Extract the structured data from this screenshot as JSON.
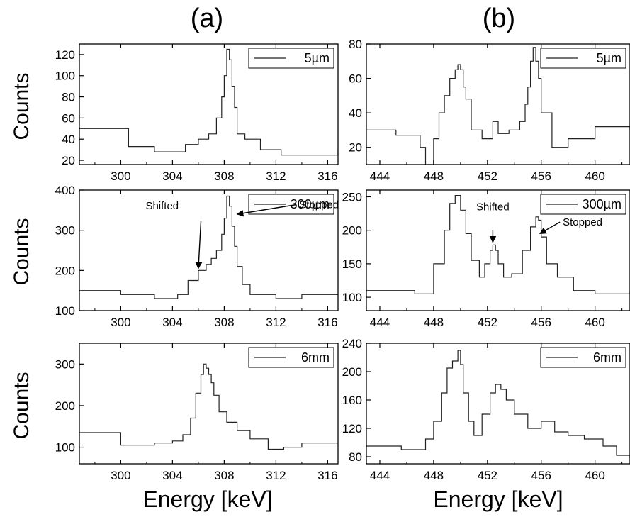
{
  "figure": {
    "col_labels": [
      "(a)",
      "(b)"
    ],
    "ylabel": "Counts",
    "xlabel": "Energy [keV]"
  },
  "chart_data": [
    {
      "type": "line",
      "step": true,
      "panel": "a-top",
      "legend": "5µm",
      "legend_position": "top-right",
      "xlim": [
        296.8,
        316.8
      ],
      "ylim": [
        16,
        130
      ],
      "xticks": [
        300,
        304,
        308,
        312,
        316
      ],
      "yticks": [
        20,
        40,
        60,
        80,
        100,
        120
      ],
      "x": [
        296.8,
        300.6,
        302.6,
        305.0,
        306.0,
        306.8,
        307.4,
        307.8,
        308.0,
        308.2,
        308.4,
        308.6,
        308.8,
        309.0,
        309.6,
        310.8,
        312.4,
        314.0,
        316.8
      ],
      "y": [
        50,
        33,
        28,
        35,
        40,
        45,
        60,
        80,
        100,
        125,
        115,
        90,
        70,
        45,
        40,
        30,
        25,
        25,
        30
      ],
      "annotations": []
    },
    {
      "type": "line",
      "step": true,
      "panel": "b-top",
      "legend": "5µm",
      "legend_position": "top-right",
      "xlim": [
        443.0,
        462.6
      ],
      "ylim": [
        10,
        80
      ],
      "xticks": [
        444,
        448,
        452,
        456,
        460
      ],
      "yticks": [
        20,
        40,
        60,
        80
      ],
      "x": [
        443.0,
        445.2,
        447.0,
        447.4,
        448.0,
        448.4,
        448.8,
        449.2,
        449.6,
        449.8,
        450.0,
        450.2,
        450.4,
        450.8,
        451.6,
        452.4,
        452.8,
        453.6,
        454.4,
        454.8,
        455.0,
        455.2,
        455.4,
        455.6,
        455.8,
        456.0,
        456.8,
        458.0,
        460.0,
        462.6
      ],
      "y": [
        30,
        27,
        20,
        10,
        25,
        40,
        50,
        60,
        65,
        68,
        65,
        55,
        48,
        30,
        25,
        35,
        28,
        30,
        35,
        45,
        55,
        70,
        78,
        70,
        60,
        40,
        20,
        25,
        32,
        30
      ],
      "annotations": []
    },
    {
      "type": "line",
      "step": true,
      "panel": "a-middle",
      "legend": "300µm",
      "legend_position": "top-right",
      "xlim": [
        296.8,
        316.8
      ],
      "ylim": [
        100,
        400
      ],
      "xticks": [
        300,
        304,
        308,
        312,
        316
      ],
      "yticks": [
        100,
        200,
        300,
        400
      ],
      "x": [
        296.8,
        300.0,
        302.6,
        304.4,
        305.2,
        306.0,
        306.6,
        307.0,
        307.4,
        307.8,
        308.0,
        308.2,
        308.4,
        308.6,
        308.8,
        309.0,
        309.4,
        310.0,
        312.0,
        314.0,
        316.8
      ],
      "y": [
        150,
        140,
        130,
        140,
        175,
        200,
        215,
        230,
        250,
        290,
        330,
        385,
        360,
        310,
        260,
        210,
        165,
        140,
        130,
        140,
        140
      ],
      "annotations": [
        "Shifted",
        "Stopped"
      ]
    },
    {
      "type": "line",
      "step": true,
      "panel": "b-middle",
      "legend": "300µm",
      "legend_position": "top-right",
      "xlim": [
        443.0,
        462.6
      ],
      "ylim": [
        80,
        260
      ],
      "xticks": [
        444,
        448,
        452,
        456,
        460
      ],
      "yticks": [
        100,
        150,
        200,
        250
      ],
      "x": [
        443.0,
        446.6,
        448.0,
        448.8,
        449.2,
        449.6,
        450.0,
        450.4,
        450.8,
        451.4,
        451.8,
        452.2,
        452.4,
        452.6,
        452.8,
        453.2,
        453.8,
        454.6,
        455.2,
        455.6,
        455.8,
        456.0,
        456.4,
        457.2,
        458.4,
        460.0,
        462.6
      ],
      "y": [
        110,
        105,
        150,
        200,
        240,
        252,
        230,
        195,
        155,
        130,
        150,
        170,
        178,
        170,
        150,
        130,
        135,
        170,
        205,
        220,
        215,
        190,
        150,
        130,
        110,
        105,
        108
      ],
      "annotations": [
        "Shifted",
        "Stopped"
      ]
    },
    {
      "type": "line",
      "step": true,
      "panel": "a-bottom",
      "legend": "6mm",
      "legend_position": "top-right",
      "xlim": [
        296.8,
        316.8
      ],
      "ylim": [
        60,
        350
      ],
      "xticks": [
        300,
        304,
        308,
        312,
        316
      ],
      "yticks": [
        100,
        200,
        300
      ],
      "x": [
        296.8,
        300.0,
        302.6,
        304.0,
        304.8,
        305.4,
        305.8,
        306.2,
        306.4,
        306.6,
        306.8,
        307.0,
        307.2,
        307.6,
        308.2,
        309.0,
        310.0,
        311.4,
        312.6,
        314.0,
        316.8
      ],
      "y": [
        135,
        105,
        110,
        115,
        130,
        170,
        230,
        275,
        300,
        290,
        275,
        255,
        225,
        185,
        160,
        140,
        120,
        95,
        100,
        110,
        105
      ],
      "annotations": []
    },
    {
      "type": "line",
      "step": true,
      "panel": "b-bottom",
      "legend": "6mm",
      "legend_position": "top-right",
      "xlim": [
        443.0,
        462.6
      ],
      "ylim": [
        70,
        240
      ],
      "xticks": [
        444,
        448,
        452,
        456,
        460
      ],
      "yticks": [
        80,
        120,
        160,
        200,
        240
      ],
      "x": [
        443.0,
        445.6,
        447.4,
        448.0,
        448.6,
        449.0,
        449.4,
        449.8,
        450.0,
        450.2,
        450.6,
        451.0,
        451.6,
        452.2,
        452.6,
        453.0,
        453.4,
        454.0,
        455.0,
        456.0,
        457.0,
        458.0,
        459.2,
        460.6,
        461.6,
        462.6
      ],
      "y": [
        95,
        90,
        105,
        130,
        170,
        205,
        215,
        230,
        210,
        170,
        130,
        110,
        140,
        170,
        182,
        175,
        160,
        140,
        120,
        130,
        115,
        110,
        105,
        95,
        82,
        78
      ],
      "annotations": []
    }
  ]
}
